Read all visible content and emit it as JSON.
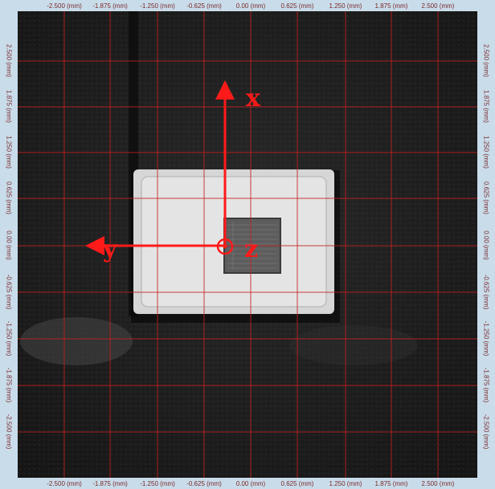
{
  "viewer": {
    "ticks": {
      "top": [
        "-2.500 (mm)",
        "-1.875 (mm)",
        "-1.250 (mm)",
        "-0.625 (mm)",
        "0.00 (mm)",
        "0.625 (mm)",
        "1.250 (mm)",
        "1.875 (mm)",
        "2.500 (mm)"
      ],
      "bottom": [
        "-2.500 (mm)",
        "-1.875 (mm)",
        "-1.250 (mm)",
        "-0.625 (mm)",
        "0.00 (mm)",
        "0.625 (mm)",
        "1.250 (mm)",
        "1.875 (mm)",
        "2.500 (mm)"
      ],
      "left": [
        "2.500 (mm)",
        "1.875 (mm)",
        "1.250 (mm)",
        "0.625 (mm)",
        "0.00 (mm)",
        "-0.625 (mm)",
        "-1.250 (mm)",
        "-1.875 (mm)",
        "-2.500 (mm)"
      ],
      "right": [
        "2.500 (mm)",
        "1.875 (mm)",
        "1.250 (mm)",
        "0.625 (mm)",
        "0.00 (mm)",
        "-0.625 (mm)",
        "-1.250 (mm)",
        "-1.875 (mm)",
        "-2.500 (mm)"
      ]
    },
    "axes": {
      "x_label": "x",
      "y_label": "y",
      "z_label": "z"
    },
    "colors": {
      "frame": "#c9dcea",
      "grid": "#c42020",
      "axis": "#ff1a1a",
      "tick_text": "#7a2a2a",
      "background": "#1e1e1e",
      "package": "#d9d9d9",
      "die": "#5a5a5a"
    }
  }
}
